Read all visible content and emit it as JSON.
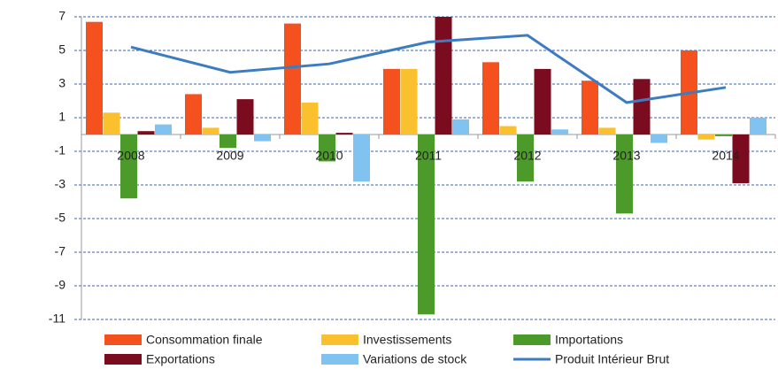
{
  "chart_data": {
    "type": "bar",
    "categories": [
      "2008",
      "2009",
      "2010",
      "2011",
      "2012",
      "2013",
      "2014"
    ],
    "series": [
      {
        "name": "Consommation finale",
        "color": "#f4511e",
        "values": [
          6.7,
          2.4,
          6.6,
          3.9,
          4.3,
          3.2,
          5.0
        ]
      },
      {
        "name": "Investissements",
        "color": "#fbc02d",
        "values": [
          1.3,
          0.4,
          1.9,
          3.9,
          0.5,
          0.4,
          -0.3
        ]
      },
      {
        "name": "Importations",
        "color": "#4c9a2a",
        "values": [
          -3.8,
          -0.8,
          -1.6,
          -10.7,
          -2.8,
          -4.7,
          -0.1
        ]
      },
      {
        "name": "Exportations",
        "color": "#7b0c1f",
        "values": [
          0.2,
          2.1,
          0.1,
          7.0,
          3.9,
          3.3,
          -2.9
        ]
      },
      {
        "name": "Variations de stock",
        "color": "#81c3f0",
        "values": [
          0.6,
          -0.4,
          -2.8,
          0.9,
          0.3,
          -0.5,
          1.0
        ]
      },
      {
        "name": "Produit Intérieur Brut",
        "color": "#3e7cc1",
        "type": "line",
        "values": [
          5.2,
          3.7,
          4.2,
          5.5,
          5.9,
          1.9,
          2.8
        ]
      }
    ],
    "ylim": [
      -11,
      7
    ],
    "yticks": [
      -11,
      -9,
      -7,
      -5,
      -3,
      -1,
      1,
      3,
      5,
      7
    ],
    "grid": true
  }
}
